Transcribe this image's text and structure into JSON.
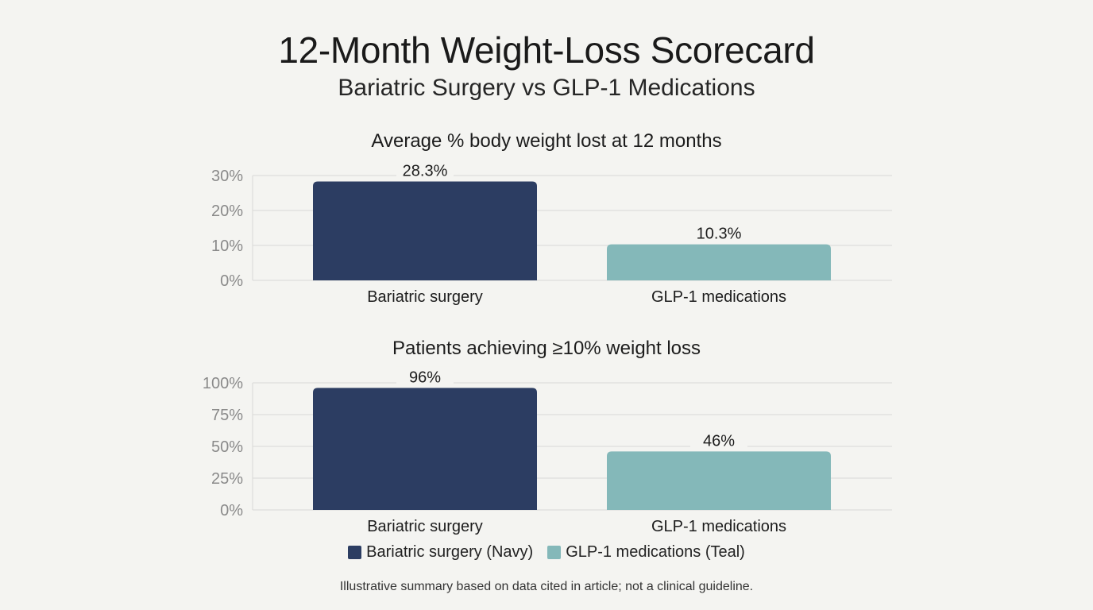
{
  "title": "12-Month Weight-Loss Scorecard",
  "subtitle": "Bariatric Surgery vs GLP-1 Medications",
  "colors": {
    "navy": "#2c3d62",
    "teal": "#84b8b9",
    "grid": "#d9d9d6",
    "axis_text": "#8a8a8a"
  },
  "chart_data": [
    {
      "type": "bar",
      "title": "Average % body weight lost at 12 months",
      "categories": [
        "Bariatric surgery",
        "GLP-1 medications"
      ],
      "values": [
        28.3,
        10.3
      ],
      "value_labels": [
        "28.3%",
        "10.3%"
      ],
      "yticks": [
        0,
        10,
        20,
        30
      ],
      "ytick_labels": [
        "0%",
        "10%",
        "20%",
        "30%"
      ],
      "ylim": [
        0,
        30
      ],
      "grid": true
    },
    {
      "type": "bar",
      "title": "Patients achieving ≥10% weight loss",
      "categories": [
        "Bariatric surgery",
        "GLP-1 medications"
      ],
      "values": [
        96,
        46
      ],
      "value_labels": [
        "96%",
        "46%"
      ],
      "yticks": [
        0,
        25,
        50,
        75,
        100
      ],
      "ytick_labels": [
        "0%",
        "25%",
        "50%",
        "75%",
        "100%"
      ],
      "ylim": [
        0,
        100
      ],
      "grid": true
    }
  ],
  "legend": [
    {
      "label": "Bariatric surgery (Navy)",
      "color": "#2c3d62"
    },
    {
      "label": "GLP-1 medications (Teal)",
      "color": "#84b8b9"
    }
  ],
  "footnote": "Illustrative summary based on data cited in article; not a clinical guideline."
}
